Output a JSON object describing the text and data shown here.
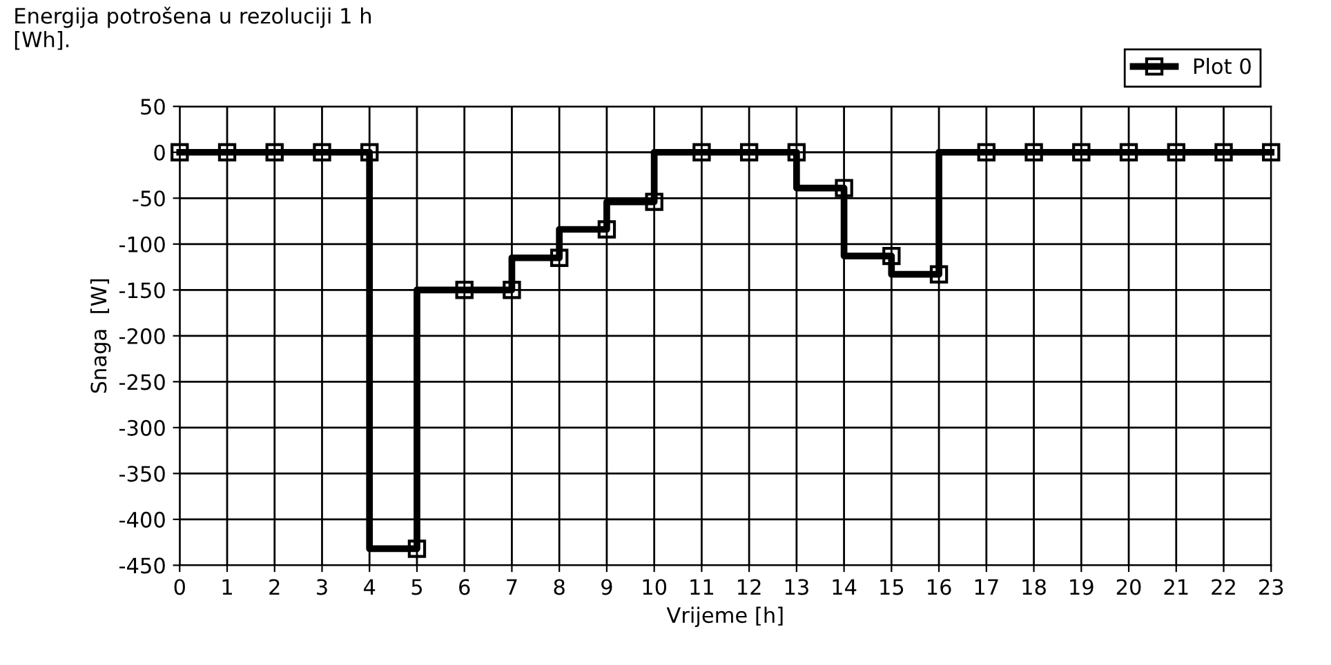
{
  "chart_data": {
    "type": "step",
    "title": "Energija potrošena u rezoluciji 1 h\n[Wh].",
    "xlabel": "Vrijeme [h]",
    "ylabel": "Snaga  [W]",
    "x": [
      0,
      1,
      2,
      3,
      4,
      5,
      6,
      7,
      8,
      9,
      10,
      11,
      12,
      13,
      14,
      15,
      16,
      17,
      18,
      19,
      20,
      21,
      22,
      23
    ],
    "series": [
      {
        "name": "Plot 0",
        "color": "#000000",
        "values": [
          0,
          0,
          0,
          0,
          0,
          -432,
          -150,
          -150,
          -115,
          -84,
          -54,
          0,
          0,
          0,
          -39,
          -113,
          -133,
          0,
          0,
          0,
          0,
          0,
          0,
          0
        ]
      }
    ],
    "xlim": [
      0,
      23
    ],
    "xticks": [
      0,
      1,
      2,
      3,
      4,
      5,
      6,
      7,
      8,
      9,
      10,
      11,
      12,
      13,
      14,
      15,
      16,
      17,
      18,
      19,
      20,
      21,
      22,
      23
    ],
    "ylim": [
      -450,
      50
    ],
    "yticks": [
      -450,
      -400,
      -350,
      -300,
      -250,
      -200,
      -150,
      -100,
      -50,
      0,
      50
    ],
    "grid": true,
    "legend": "top right",
    "marker": "square",
    "line_style": "solid"
  }
}
